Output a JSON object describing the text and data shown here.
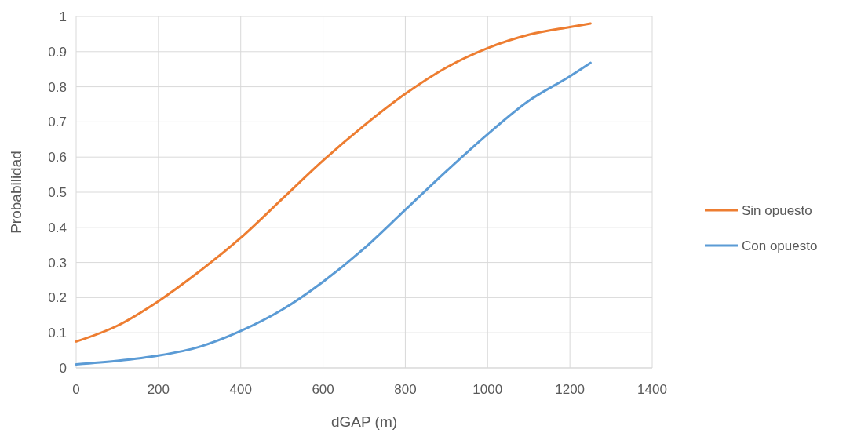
{
  "chart_data": {
    "type": "line",
    "xlabel": "dGAP (m)",
    "ylabel": "Probabilidad",
    "x": [
      0,
      100,
      200,
      300,
      400,
      500,
      600,
      700,
      800,
      900,
      1000,
      1100,
      1200,
      1250
    ],
    "series": [
      {
        "name": "Sin opuesto",
        "color": "#ed7d31",
        "values": [
          0.075,
          0.12,
          0.19,
          0.275,
          0.37,
          0.48,
          0.59,
          0.69,
          0.78,
          0.855,
          0.91,
          0.948,
          0.97,
          0.98
        ]
      },
      {
        "name": "Con opuesto",
        "color": "#5b9bd5",
        "values": [
          0.01,
          0.02,
          0.035,
          0.06,
          0.105,
          0.165,
          0.245,
          0.34,
          0.45,
          0.56,
          0.665,
          0.76,
          0.83,
          0.868
        ]
      }
    ],
    "xlim": [
      0,
      1400
    ],
    "xticks": [
      0,
      200,
      400,
      600,
      800,
      1000,
      1200,
      1400
    ],
    "ylim": [
      0,
      1
    ],
    "yticks": [
      0,
      0.1,
      0.2,
      0.3,
      0.4,
      0.5,
      0.6,
      0.7,
      0.8,
      0.9,
      1
    ],
    "grid": true,
    "legend": "right",
    "marker": "none",
    "line_style": "solid"
  }
}
